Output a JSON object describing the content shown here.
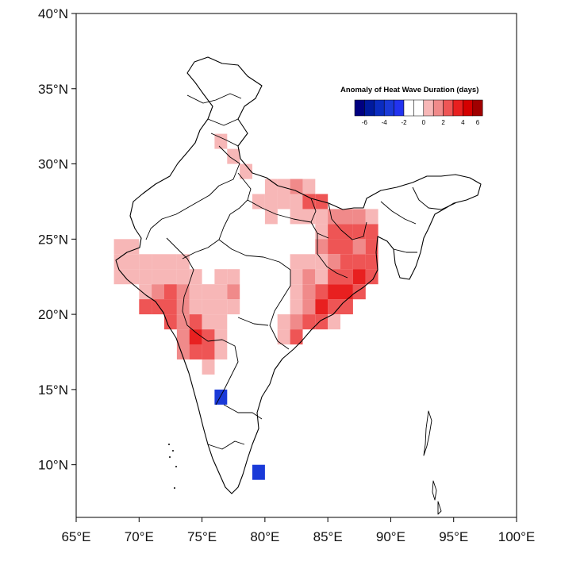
{
  "map": {
    "legend_title": "Anomaly of Heat Wave Duration (days)",
    "legend_labels": [
      "-6",
      "-4",
      "-2",
      "0",
      "2",
      "4",
      "6"
    ],
    "colors": {
      "-6": "#000080",
      "-5": "#001a9e",
      "-4": "#0a2cc0",
      "-3": "#1a3ad8",
      "-2": "#2233f0",
      "-1": "#ffffff",
      "0": "#ffffff",
      "1": "#f7b7b7",
      "2": "#f08a8a",
      "3": "#ee5555",
      "4": "#e82020",
      "5": "#d40000",
      "6": "#a00000"
    },
    "lon_labels": [
      "65°E",
      "70°E",
      "75°E",
      "80°E",
      "85°E",
      "90°E",
      "95°E",
      "100°E"
    ],
    "lat_labels": [
      "10°N",
      "15°N",
      "20°N",
      "25°N",
      "30°N",
      "35°N",
      "40°N"
    ],
    "lon_range": [
      65,
      100
    ],
    "lat_range": [
      6.5,
      40
    ],
    "cell_size_deg": 1,
    "cells": [
      {
        "lon": 76,
        "lat": 31,
        "v": 1
      },
      {
        "lon": 77,
        "lat": 30,
        "v": 1
      },
      {
        "lon": 78,
        "lat": 29,
        "v": 1
      },
      {
        "lon": 80,
        "lat": 28,
        "v": 1
      },
      {
        "lon": 81,
        "lat": 28,
        "v": 1
      },
      {
        "lon": 82,
        "lat": 28,
        "v": 2
      },
      {
        "lon": 83,
        "lat": 28,
        "v": 1
      },
      {
        "lon": 79,
        "lat": 27,
        "v": 1
      },
      {
        "lon": 80,
        "lat": 27,
        "v": 1
      },
      {
        "lon": 81,
        "lat": 27,
        "v": 1
      },
      {
        "lon": 82,
        "lat": 27,
        "v": 1
      },
      {
        "lon": 83,
        "lat": 27,
        "v": 3
      },
      {
        "lon": 84,
        "lat": 27,
        "v": 3
      },
      {
        "lon": 80,
        "lat": 26,
        "v": 1
      },
      {
        "lon": 82,
        "lat": 26,
        "v": 1
      },
      {
        "lon": 83,
        "lat": 26,
        "v": 1
      },
      {
        "lon": 84,
        "lat": 26,
        "v": 1
      },
      {
        "lon": 85,
        "lat": 26,
        "v": 2
      },
      {
        "lon": 86,
        "lat": 26,
        "v": 2
      },
      {
        "lon": 87,
        "lat": 26,
        "v": 2
      },
      {
        "lon": 88,
        "lat": 26,
        "v": 1
      },
      {
        "lon": 84,
        "lat": 25,
        "v": 1
      },
      {
        "lon": 85,
        "lat": 25,
        "v": 3
      },
      {
        "lon": 86,
        "lat": 25,
        "v": 3
      },
      {
        "lon": 87,
        "lat": 25,
        "v": 3
      },
      {
        "lon": 88,
        "lat": 25,
        "v": 3
      },
      {
        "lon": 84,
        "lat": 24,
        "v": 2
      },
      {
        "lon": 85,
        "lat": 24,
        "v": 3
      },
      {
        "lon": 86,
        "lat": 24,
        "v": 3
      },
      {
        "lon": 87,
        "lat": 24,
        "v": 2
      },
      {
        "lon": 88,
        "lat": 24,
        "v": 3
      },
      {
        "lon": 82,
        "lat": 23,
        "v": 1
      },
      {
        "lon": 83,
        "lat": 23,
        "v": 1
      },
      {
        "lon": 84,
        "lat": 23,
        "v": 1
      },
      {
        "lon": 85,
        "lat": 23,
        "v": 2
      },
      {
        "lon": 86,
        "lat": 23,
        "v": 3
      },
      {
        "lon": 87,
        "lat": 23,
        "v": 3
      },
      {
        "lon": 88,
        "lat": 23,
        "v": 3
      },
      {
        "lon": 82,
        "lat": 22,
        "v": 1
      },
      {
        "lon": 83,
        "lat": 22,
        "v": 2
      },
      {
        "lon": 84,
        "lat": 22,
        "v": 1
      },
      {
        "lon": 85,
        "lat": 22,
        "v": 3
      },
      {
        "lon": 86,
        "lat": 22,
        "v": 3
      },
      {
        "lon": 87,
        "lat": 22,
        "v": 4
      },
      {
        "lon": 88,
        "lat": 22,
        "v": 3
      },
      {
        "lon": 82,
        "lat": 21,
        "v": 1
      },
      {
        "lon": 83,
        "lat": 21,
        "v": 2
      },
      {
        "lon": 84,
        "lat": 21,
        "v": 3
      },
      {
        "lon": 85,
        "lat": 21,
        "v": 4
      },
      {
        "lon": 86,
        "lat": 21,
        "v": 4
      },
      {
        "lon": 87,
        "lat": 21,
        "v": 3
      },
      {
        "lon": 82,
        "lat": 20,
        "v": 1
      },
      {
        "lon": 83,
        "lat": 20,
        "v": 2
      },
      {
        "lon": 84,
        "lat": 20,
        "v": 4
      },
      {
        "lon": 85,
        "lat": 20,
        "v": 3
      },
      {
        "lon": 86,
        "lat": 20,
        "v": 3
      },
      {
        "lon": 81,
        "lat": 19,
        "v": 1
      },
      {
        "lon": 82,
        "lat": 19,
        "v": 2
      },
      {
        "lon": 83,
        "lat": 19,
        "v": 3
      },
      {
        "lon": 84,
        "lat": 19,
        "v": 3
      },
      {
        "lon": 85,
        "lat": 19,
        "v": 1
      },
      {
        "lon": 81,
        "lat": 18,
        "v": 1
      },
      {
        "lon": 82,
        "lat": 18,
        "v": 3
      },
      {
        "lon": 68,
        "lat": 24,
        "v": 1
      },
      {
        "lon": 69,
        "lat": 24,
        "v": 1
      },
      {
        "lon": 68,
        "lat": 23,
        "v": 1
      },
      {
        "lon": 69,
        "lat": 23,
        "v": 1
      },
      {
        "lon": 70,
        "lat": 23,
        "v": 1
      },
      {
        "lon": 71,
        "lat": 23,
        "v": 1
      },
      {
        "lon": 72,
        "lat": 23,
        "v": 1
      },
      {
        "lon": 73,
        "lat": 23,
        "v": 1
      },
      {
        "lon": 68,
        "lat": 22,
        "v": 1
      },
      {
        "lon": 69,
        "lat": 22,
        "v": 1
      },
      {
        "lon": 70,
        "lat": 22,
        "v": 1
      },
      {
        "lon": 71,
        "lat": 22,
        "v": 1
      },
      {
        "lon": 72,
        "lat": 22,
        "v": 1
      },
      {
        "lon": 73,
        "lat": 22,
        "v": 1
      },
      {
        "lon": 74,
        "lat": 22,
        "v": 1
      },
      {
        "lon": 70,
        "lat": 21,
        "v": 1
      },
      {
        "lon": 71,
        "lat": 21,
        "v": 2
      },
      {
        "lon": 72,
        "lat": 21,
        "v": 3
      },
      {
        "lon": 73,
        "lat": 21,
        "v": 2
      },
      {
        "lon": 74,
        "lat": 21,
        "v": 1
      },
      {
        "lon": 70,
        "lat": 20,
        "v": 3
      },
      {
        "lon": 71,
        "lat": 20,
        "v": 3
      },
      {
        "lon": 72,
        "lat": 20,
        "v": 3
      },
      {
        "lon": 73,
        "lat": 20,
        "v": 2
      },
      {
        "lon": 74,
        "lat": 20,
        "v": 1
      },
      {
        "lon": 72,
        "lat": 19,
        "v": 3
      },
      {
        "lon": 73,
        "lat": 19,
        "v": 2
      },
      {
        "lon": 74,
        "lat": 19,
        "v": 3
      },
      {
        "lon": 75,
        "lat": 19,
        "v": 1
      },
      {
        "lon": 76,
        "lat": 19,
        "v": 1
      },
      {
        "lon": 73,
        "lat": 18,
        "v": 2
      },
      {
        "lon": 74,
        "lat": 18,
        "v": 4
      },
      {
        "lon": 75,
        "lat": 18,
        "v": 3
      },
      {
        "lon": 76,
        "lat": 18,
        "v": 1
      },
      {
        "lon": 73,
        "lat": 17,
        "v": 2
      },
      {
        "lon": 74,
        "lat": 17,
        "v": 3
      },
      {
        "lon": 75,
        "lat": 17,
        "v": 3
      },
      {
        "lon": 76,
        "lat": 17,
        "v": 1
      },
      {
        "lon": 75,
        "lat": 16,
        "v": 1
      },
      {
        "lon": 76,
        "lat": 22,
        "v": 1
      },
      {
        "lon": 77,
        "lat": 22,
        "v": 1
      },
      {
        "lon": 75,
        "lat": 21,
        "v": 1
      },
      {
        "lon": 76,
        "lat": 21,
        "v": 1
      },
      {
        "lon": 77,
        "lat": 21,
        "v": 2
      },
      {
        "lon": 75,
        "lat": 20,
        "v": 1
      },
      {
        "lon": 76,
        "lat": 20,
        "v": 1
      },
      {
        "lon": 77,
        "lat": 20,
        "v": 1
      },
      {
        "lon": 76,
        "lat": 14,
        "v": -3
      },
      {
        "lon": 79,
        "lat": 9,
        "v": -3
      }
    ]
  }
}
